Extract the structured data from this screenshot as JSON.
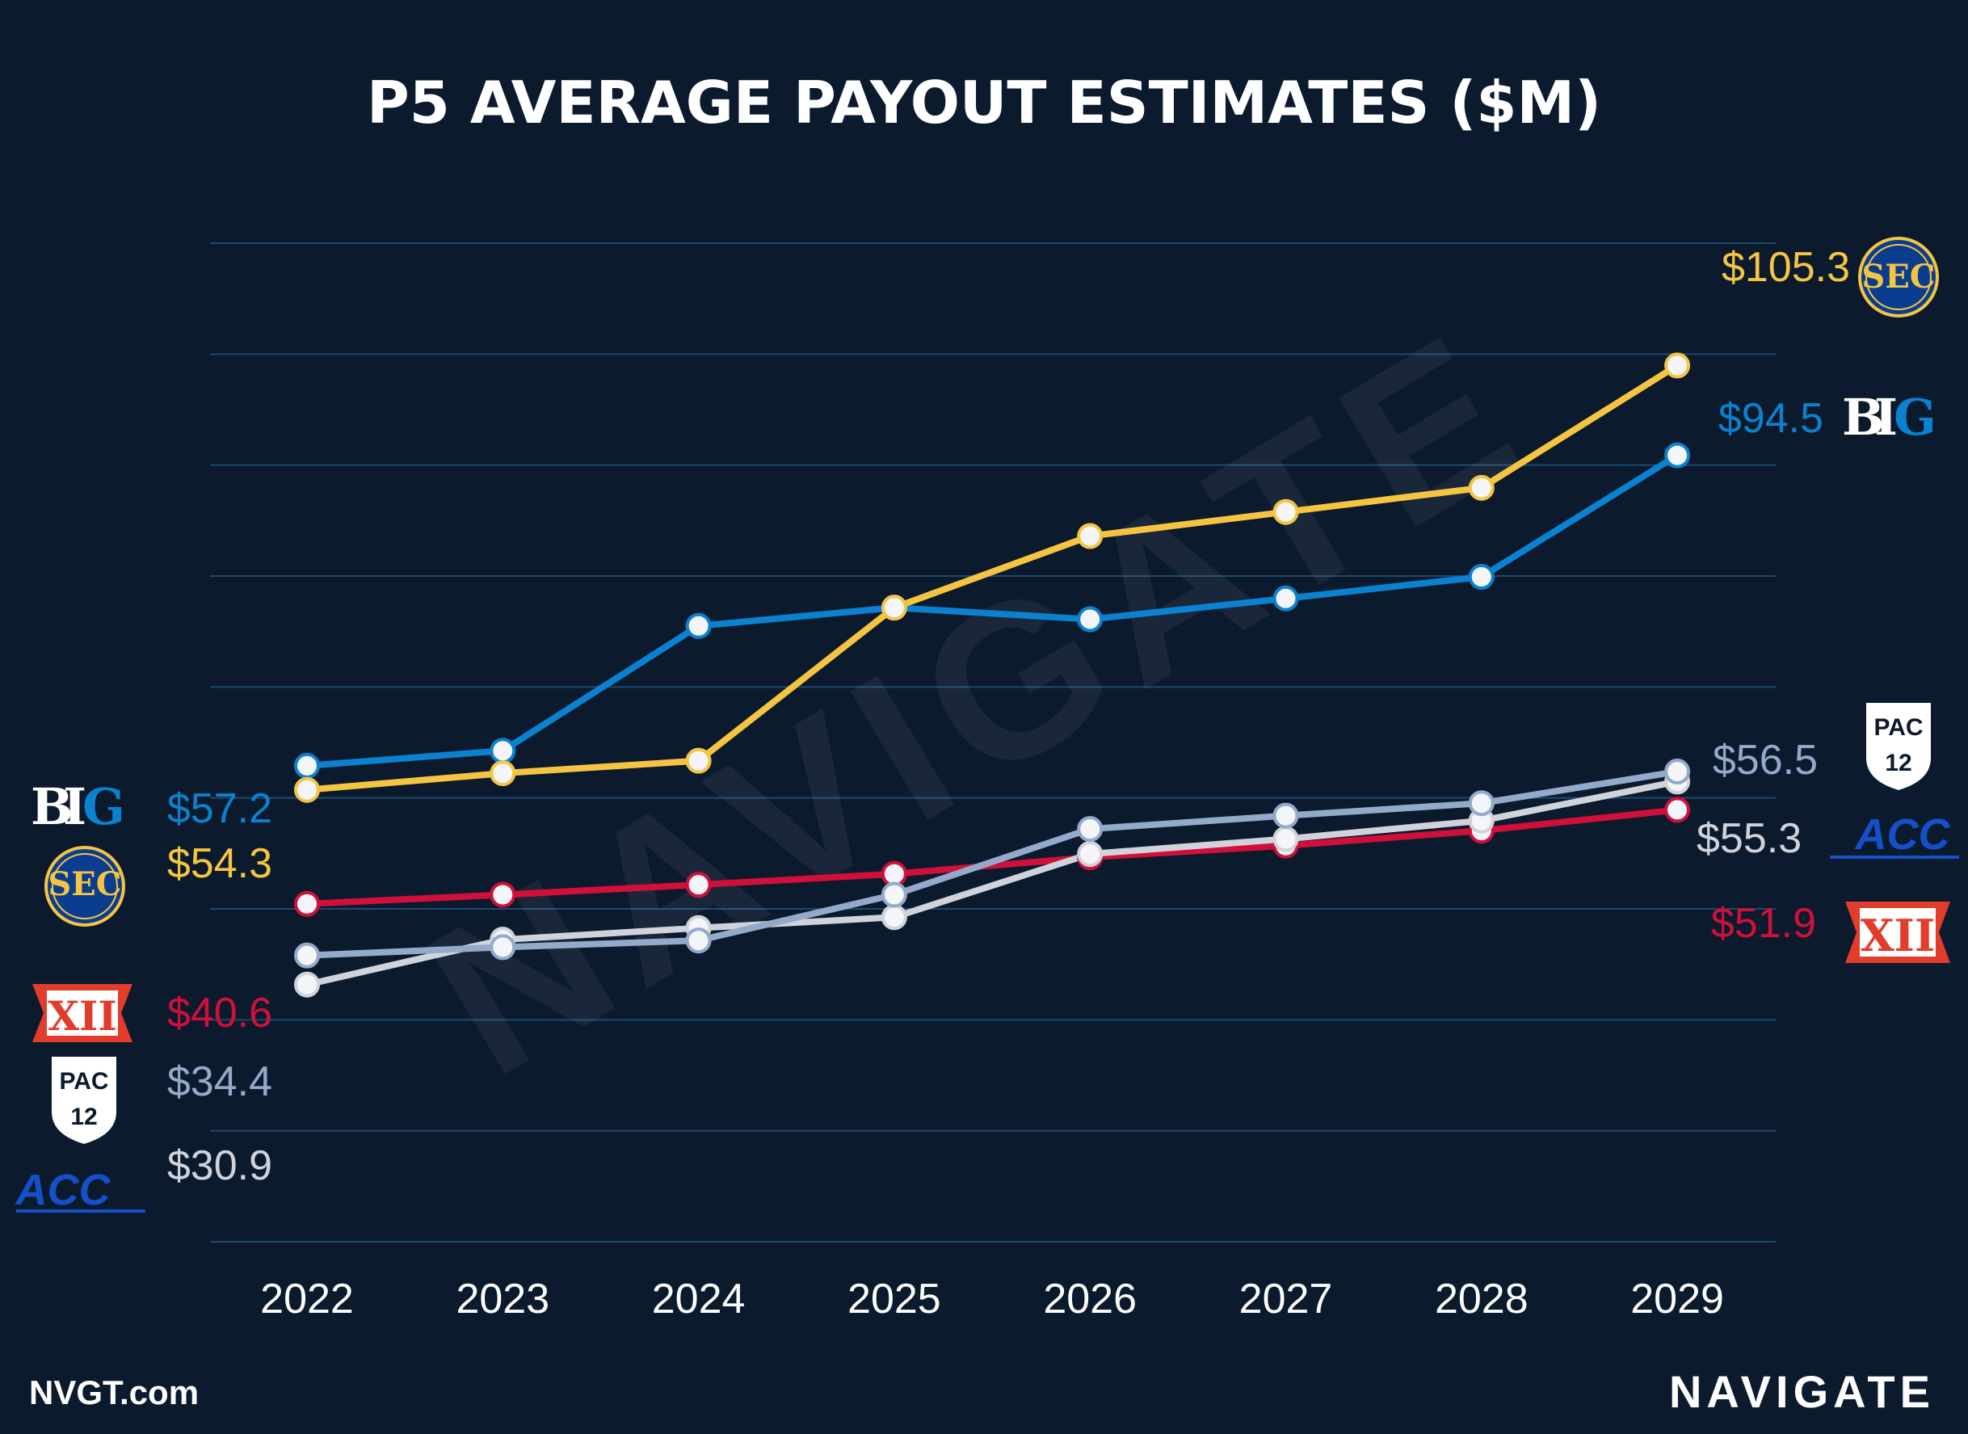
{
  "chart_data": {
    "type": "line",
    "title": "P5 AVERAGE PAYOUT ESTIMATES ($M)",
    "categories": [
      "2022",
      "2023",
      "2024",
      "2025",
      "2026",
      "2027",
      "2028",
      "2029"
    ],
    "ylim": [
      0,
      120
    ],
    "grid": true,
    "series": [
      {
        "name": "SEC",
        "color": "#f5c542",
        "values": [
          54.3,
          56.3,
          57.8,
          76.2,
          84.8,
          87.7,
          90.6,
          105.3
        ],
        "start_label": "$54.3",
        "end_label": "$105.3"
      },
      {
        "name": "Big Ten",
        "color": "#0a82d0",
        "values": [
          57.2,
          59.0,
          74.0,
          76.2,
          74.8,
          77.3,
          79.9,
          94.5
        ],
        "start_label": "$57.2",
        "end_label": "$94.5"
      },
      {
        "name": "Pac-12",
        "color": "#93aacb",
        "values": [
          34.4,
          35.4,
          36.2,
          41.7,
          49.6,
          51.2,
          52.7,
          56.5
        ],
        "start_label": "$34.4",
        "end_label": "$56.5"
      },
      {
        "name": "ACC",
        "color": "#d1d3da",
        "values": [
          30.9,
          36.3,
          37.7,
          39.0,
          46.6,
          48.4,
          50.6,
          55.3
        ],
        "start_label": "$30.9",
        "end_label": "$55.3"
      },
      {
        "name": "Big 12",
        "color": "#d0103a",
        "values": [
          40.6,
          41.7,
          42.9,
          44.2,
          46.2,
          47.6,
          49.4,
          51.9
        ],
        "start_label": "$40.6",
        "end_label": "$51.9"
      }
    ]
  },
  "watermark": "NAVIGATE",
  "footer": {
    "site": "NVGT.com",
    "brand": "NAVIGATE"
  },
  "logos": {
    "sec": "SEC",
    "b1g_b": "B",
    "b1g_i": "I",
    "b1g_g": "G",
    "acc": "ACC",
    "xii": "XII",
    "pac": "PAC",
    "pac_num": "12"
  }
}
